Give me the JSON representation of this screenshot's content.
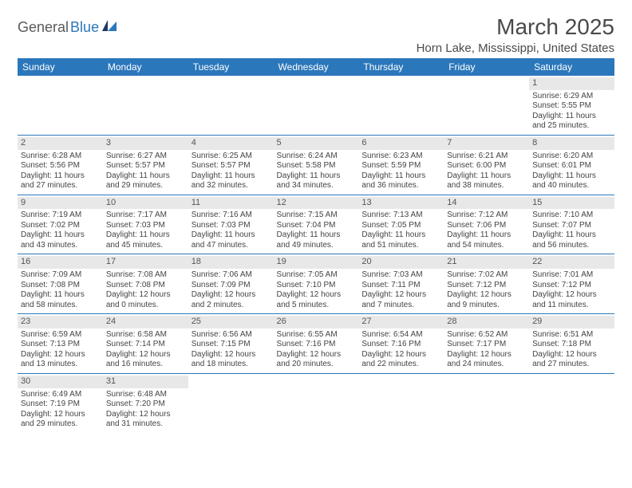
{
  "logo": {
    "part1": "General",
    "part2": "Blue"
  },
  "title": "March 2025",
  "location": "Horn Lake, Mississippi, United States",
  "colors": {
    "header_bg": "#2b77bb",
    "header_text": "#ffffff",
    "daynum_bg": "#e8e8e8",
    "border": "#2b77bb",
    "text": "#444444",
    "logo_gray": "#5a5a5a",
    "logo_blue": "#2b77bb",
    "page_bg": "#ffffff"
  },
  "day_headers": [
    "Sunday",
    "Monday",
    "Tuesday",
    "Wednesday",
    "Thursday",
    "Friday",
    "Saturday"
  ],
  "weeks": [
    [
      {
        "empty": true
      },
      {
        "empty": true
      },
      {
        "empty": true
      },
      {
        "empty": true
      },
      {
        "empty": true
      },
      {
        "empty": true
      },
      {
        "day": "1",
        "sunrise": "Sunrise: 6:29 AM",
        "sunset": "Sunset: 5:55 PM",
        "daylight": "Daylight: 11 hours and 25 minutes."
      }
    ],
    [
      {
        "day": "2",
        "sunrise": "Sunrise: 6:28 AM",
        "sunset": "Sunset: 5:56 PM",
        "daylight": "Daylight: 11 hours and 27 minutes."
      },
      {
        "day": "3",
        "sunrise": "Sunrise: 6:27 AM",
        "sunset": "Sunset: 5:57 PM",
        "daylight": "Daylight: 11 hours and 29 minutes."
      },
      {
        "day": "4",
        "sunrise": "Sunrise: 6:25 AM",
        "sunset": "Sunset: 5:57 PM",
        "daylight": "Daylight: 11 hours and 32 minutes."
      },
      {
        "day": "5",
        "sunrise": "Sunrise: 6:24 AM",
        "sunset": "Sunset: 5:58 PM",
        "daylight": "Daylight: 11 hours and 34 minutes."
      },
      {
        "day": "6",
        "sunrise": "Sunrise: 6:23 AM",
        "sunset": "Sunset: 5:59 PM",
        "daylight": "Daylight: 11 hours and 36 minutes."
      },
      {
        "day": "7",
        "sunrise": "Sunrise: 6:21 AM",
        "sunset": "Sunset: 6:00 PM",
        "daylight": "Daylight: 11 hours and 38 minutes."
      },
      {
        "day": "8",
        "sunrise": "Sunrise: 6:20 AM",
        "sunset": "Sunset: 6:01 PM",
        "daylight": "Daylight: 11 hours and 40 minutes."
      }
    ],
    [
      {
        "day": "9",
        "sunrise": "Sunrise: 7:19 AM",
        "sunset": "Sunset: 7:02 PM",
        "daylight": "Daylight: 11 hours and 43 minutes."
      },
      {
        "day": "10",
        "sunrise": "Sunrise: 7:17 AM",
        "sunset": "Sunset: 7:03 PM",
        "daylight": "Daylight: 11 hours and 45 minutes."
      },
      {
        "day": "11",
        "sunrise": "Sunrise: 7:16 AM",
        "sunset": "Sunset: 7:03 PM",
        "daylight": "Daylight: 11 hours and 47 minutes."
      },
      {
        "day": "12",
        "sunrise": "Sunrise: 7:15 AM",
        "sunset": "Sunset: 7:04 PM",
        "daylight": "Daylight: 11 hours and 49 minutes."
      },
      {
        "day": "13",
        "sunrise": "Sunrise: 7:13 AM",
        "sunset": "Sunset: 7:05 PM",
        "daylight": "Daylight: 11 hours and 51 minutes."
      },
      {
        "day": "14",
        "sunrise": "Sunrise: 7:12 AM",
        "sunset": "Sunset: 7:06 PM",
        "daylight": "Daylight: 11 hours and 54 minutes."
      },
      {
        "day": "15",
        "sunrise": "Sunrise: 7:10 AM",
        "sunset": "Sunset: 7:07 PM",
        "daylight": "Daylight: 11 hours and 56 minutes."
      }
    ],
    [
      {
        "day": "16",
        "sunrise": "Sunrise: 7:09 AM",
        "sunset": "Sunset: 7:08 PM",
        "daylight": "Daylight: 11 hours and 58 minutes."
      },
      {
        "day": "17",
        "sunrise": "Sunrise: 7:08 AM",
        "sunset": "Sunset: 7:08 PM",
        "daylight": "Daylight: 12 hours and 0 minutes."
      },
      {
        "day": "18",
        "sunrise": "Sunrise: 7:06 AM",
        "sunset": "Sunset: 7:09 PM",
        "daylight": "Daylight: 12 hours and 2 minutes."
      },
      {
        "day": "19",
        "sunrise": "Sunrise: 7:05 AM",
        "sunset": "Sunset: 7:10 PM",
        "daylight": "Daylight: 12 hours and 5 minutes."
      },
      {
        "day": "20",
        "sunrise": "Sunrise: 7:03 AM",
        "sunset": "Sunset: 7:11 PM",
        "daylight": "Daylight: 12 hours and 7 minutes."
      },
      {
        "day": "21",
        "sunrise": "Sunrise: 7:02 AM",
        "sunset": "Sunset: 7:12 PM",
        "daylight": "Daylight: 12 hours and 9 minutes."
      },
      {
        "day": "22",
        "sunrise": "Sunrise: 7:01 AM",
        "sunset": "Sunset: 7:12 PM",
        "daylight": "Daylight: 12 hours and 11 minutes."
      }
    ],
    [
      {
        "day": "23",
        "sunrise": "Sunrise: 6:59 AM",
        "sunset": "Sunset: 7:13 PM",
        "daylight": "Daylight: 12 hours and 13 minutes."
      },
      {
        "day": "24",
        "sunrise": "Sunrise: 6:58 AM",
        "sunset": "Sunset: 7:14 PM",
        "daylight": "Daylight: 12 hours and 16 minutes."
      },
      {
        "day": "25",
        "sunrise": "Sunrise: 6:56 AM",
        "sunset": "Sunset: 7:15 PM",
        "daylight": "Daylight: 12 hours and 18 minutes."
      },
      {
        "day": "26",
        "sunrise": "Sunrise: 6:55 AM",
        "sunset": "Sunset: 7:16 PM",
        "daylight": "Daylight: 12 hours and 20 minutes."
      },
      {
        "day": "27",
        "sunrise": "Sunrise: 6:54 AM",
        "sunset": "Sunset: 7:16 PM",
        "daylight": "Daylight: 12 hours and 22 minutes."
      },
      {
        "day": "28",
        "sunrise": "Sunrise: 6:52 AM",
        "sunset": "Sunset: 7:17 PM",
        "daylight": "Daylight: 12 hours and 24 minutes."
      },
      {
        "day": "29",
        "sunrise": "Sunrise: 6:51 AM",
        "sunset": "Sunset: 7:18 PM",
        "daylight": "Daylight: 12 hours and 27 minutes."
      }
    ],
    [
      {
        "day": "30",
        "sunrise": "Sunrise: 6:49 AM",
        "sunset": "Sunset: 7:19 PM",
        "daylight": "Daylight: 12 hours and 29 minutes."
      },
      {
        "day": "31",
        "sunrise": "Sunrise: 6:48 AM",
        "sunset": "Sunset: 7:20 PM",
        "daylight": "Daylight: 12 hours and 31 minutes."
      },
      {
        "empty": true
      },
      {
        "empty": true
      },
      {
        "empty": true
      },
      {
        "empty": true
      },
      {
        "empty": true
      }
    ]
  ]
}
